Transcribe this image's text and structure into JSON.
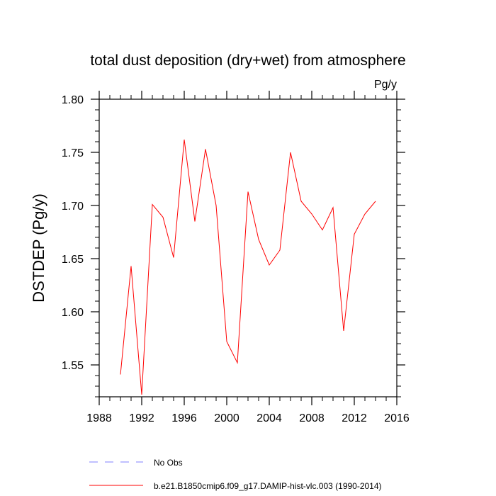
{
  "chart_data": {
    "type": "line",
    "title": "total dust deposition (dry+wet) from atmosphere",
    "units_label": "Pg/y",
    "ylabel": "DSTDEP  (Pg/y)",
    "xlabel": "",
    "xlim": [
      1988,
      2016
    ],
    "ylim": [
      1.52,
      1.8
    ],
    "x_ticks": [
      1988,
      1992,
      1996,
      2000,
      2004,
      2008,
      2012,
      2016
    ],
    "x_tick_labels": [
      "1988",
      "1992",
      "1996",
      "2000",
      "2004",
      "2008",
      "2012",
      "2016"
    ],
    "y_ticks": [
      1.55,
      1.6,
      1.65,
      1.7,
      1.75,
      1.8
    ],
    "y_tick_labels": [
      "1.55",
      "1.60",
      "1.65",
      "1.70",
      "1.75",
      "1.80"
    ],
    "grid": false,
    "legend_position": "bottom",
    "series": [
      {
        "name": "b.e21.B1850cmip6.f09_g17.DAMIP-hist-vlc.003 (1990-2014)",
        "color": "#ff0000",
        "style": "solid",
        "x": [
          1990,
          1991,
          1992,
          1993,
          1994,
          1995,
          1996,
          1997,
          1998,
          1999,
          2000,
          2001,
          2002,
          2003,
          2004,
          2005,
          2006,
          2007,
          2008,
          2009,
          2010,
          2011,
          2012,
          2013,
          2014
        ],
        "values": [
          1.541,
          1.643,
          1.522,
          1.701,
          1.689,
          1.651,
          1.762,
          1.685,
          1.753,
          1.7,
          1.572,
          1.552,
          1.713,
          1.668,
          1.644,
          1.658,
          1.75,
          1.704,
          1.692,
          1.677,
          1.698,
          1.582,
          1.673,
          1.692,
          1.704
        ]
      }
    ],
    "legend": [
      {
        "label": "No Obs",
        "color": "#8080ff",
        "style": "dashed"
      },
      {
        "label": "b.e21.B1850cmip6.f09_g17.DAMIP-hist-vlc.003 (1990-2014)",
        "color": "#ff0000",
        "style": "solid"
      }
    ]
  }
}
